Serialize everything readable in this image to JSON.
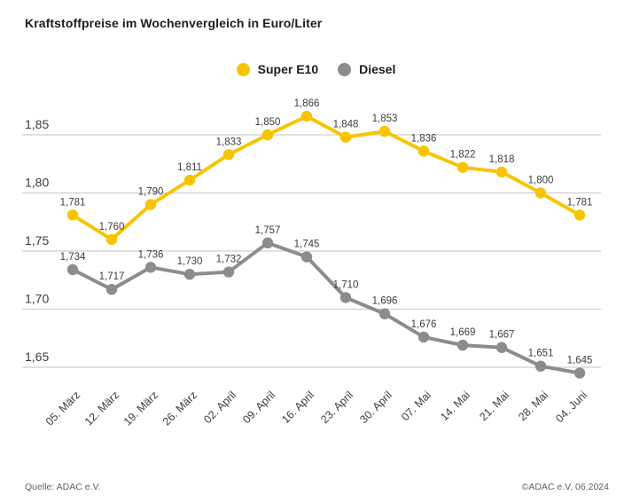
{
  "title": "Kraftstoffpreise im Wochenvergleich in Euro/Liter",
  "footer": {
    "source": "Quelle: ADAC e.V.",
    "copyright": "©ADAC e.V. 06.2024"
  },
  "colors": {
    "super_e10": "#F7C500",
    "diesel": "#8C8C8C",
    "gridline": "#CFCFCF",
    "axis_text": "#3C3C3B",
    "title_text": "#1D1D1B"
  },
  "chart_data": {
    "type": "line",
    "title": "Kraftstoffpreise im Wochenvergleich in Euro/Liter",
    "xlabel": "",
    "ylabel": "Euro/Liter",
    "ylim": [
      1.625,
      1.875
    ],
    "grid": true,
    "legend_position": "top-center",
    "categories": [
      "05. März",
      "12. März",
      "19. März",
      "26. März",
      "02. April",
      "09. April",
      "16. April",
      "23. April",
      "30. April",
      "07. Mai",
      "14. Mai",
      "21. Mai",
      "28. Mai",
      "04. Juni"
    ],
    "yticks": {
      "values": [
        1.85,
        1.8,
        1.75,
        1.7,
        1.65
      ],
      "labels": [
        "1,85",
        "1,80",
        "1,75",
        "1,70",
        "1,65"
      ]
    },
    "series": [
      {
        "name": "Super E10",
        "color": "#F7C500",
        "values": [
          1.781,
          1.76,
          1.79,
          1.811,
          1.833,
          1.85,
          1.866,
          1.848,
          1.853,
          1.836,
          1.822,
          1.818,
          1.8,
          1.781
        ],
        "labels": [
          "1,781",
          "1,760",
          "1,790",
          "1,811",
          "1,833",
          "1,850",
          "1,866",
          "1,848",
          "1,853",
          "1,836",
          "1,822",
          "1,818",
          "1,800",
          "1,781"
        ]
      },
      {
        "name": "Diesel",
        "color": "#8C8C8C",
        "values": [
          1.734,
          1.717,
          1.736,
          1.73,
          1.732,
          1.757,
          1.745,
          1.71,
          1.696,
          1.676,
          1.669,
          1.667,
          1.651,
          1.645
        ],
        "labels": [
          "1,734",
          "1,717",
          "1,736",
          "1,730",
          "1,732",
          "1,757",
          "1,745",
          "1,710",
          "1,696",
          "1,676",
          "1,669",
          "1,667",
          "1,651",
          "1,645"
        ]
      }
    ]
  }
}
